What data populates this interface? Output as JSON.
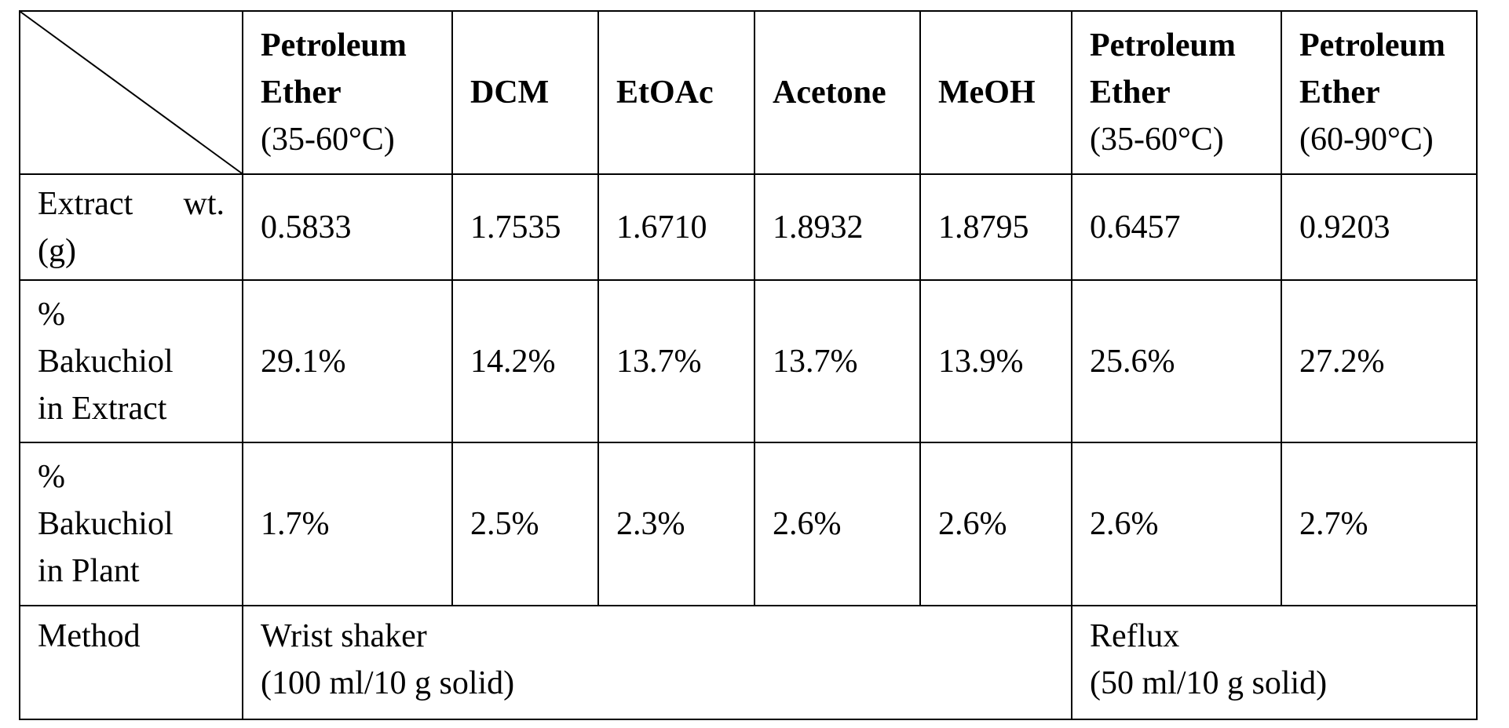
{
  "header": {
    "cols": [
      {
        "l1": "Petroleum",
        "l2": "Ether",
        "l3": "(35-60°C)"
      },
      {
        "l1": "DCM"
      },
      {
        "l1": "EtOAc"
      },
      {
        "l1": "Acetone"
      },
      {
        "l1": "MeOH"
      },
      {
        "l1": "Petroleum",
        "l2": "Ether",
        "l3": "(35-60°C)"
      },
      {
        "l1": "Petroleum",
        "l2": "Ether",
        "l3": "(60-90°C)"
      }
    ]
  },
  "rows": {
    "extract": {
      "label_a": "Extract",
      "label_b": "wt.",
      "label_c": "(g)",
      "values": [
        "0.5833",
        "1.7535",
        "1.6710",
        "1.8932",
        "1.8795",
        "0.6457",
        "0.9203"
      ]
    },
    "pct_extract": {
      "label_a": "%",
      "label_b": "Bakuchiol",
      "label_c": "in Extract",
      "values": [
        "29.1%",
        "14.2%",
        "13.7%",
        "13.7%",
        "13.9%",
        "25.6%",
        "27.2%"
      ]
    },
    "pct_plant": {
      "label_a": "%",
      "label_b": "Bakuchiol",
      "label_c": "in Plant",
      "values": [
        "1.7%",
        "2.5%",
        "2.3%",
        "2.6%",
        "2.6%",
        "2.6%",
        "2.7%"
      ]
    },
    "method": {
      "label": "Method",
      "shaker_l1": "Wrist shaker",
      "shaker_l2": "(100 ml/10 g solid)",
      "reflux_l1": "Reflux",
      "reflux_l2": "(50 ml/10 g solid)"
    }
  }
}
